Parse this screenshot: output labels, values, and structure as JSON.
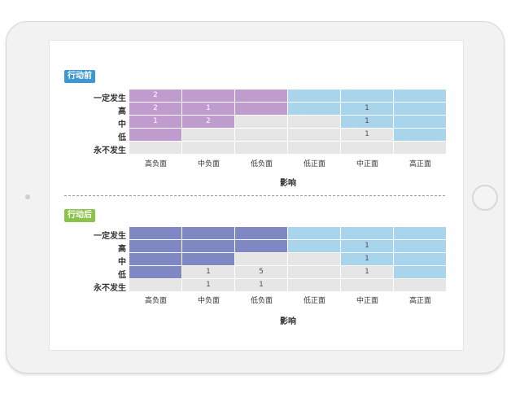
{
  "colors": {
    "purple_risk": "#bf9ccd",
    "indigo_risk": "#8088c4",
    "blue_opportunity": "#a8d4ec",
    "grey_empty": "#e6e6e6",
    "badge_before": "#3d98d0",
    "badge_after": "#8bc34a"
  },
  "chart_data": [
    {
      "type": "heatmap",
      "badge": "行动前",
      "rows": [
        "一定发生",
        "高",
        "中",
        "低",
        "永不发生"
      ],
      "columns": [
        "高负面",
        "中负面",
        "低负面",
        "低正面",
        "中正面",
        "高正面"
      ],
      "xlabel": "影响",
      "fills": [
        [
          "purple",
          "purple",
          "purple",
          "blue",
          "blue",
          "blue"
        ],
        [
          "purple",
          "purple",
          "purple",
          "blue",
          "blue",
          "blue"
        ],
        [
          "purple",
          "purple",
          "grey",
          "grey",
          "blue",
          "blue"
        ],
        [
          "purple",
          "grey",
          "grey",
          "grey",
          "grey",
          "blue"
        ],
        [
          "grey",
          "grey",
          "grey",
          "grey",
          "grey",
          "grey"
        ]
      ],
      "values": [
        [
          "2",
          "",
          "",
          "",
          "",
          ""
        ],
        [
          "2",
          "1",
          "",
          "",
          "1",
          ""
        ],
        [
          "1",
          "2",
          "",
          "",
          "1",
          ""
        ],
        [
          "",
          "",
          "",
          "",
          "1",
          ""
        ],
        [
          "",
          "",
          "",
          "",
          "",
          ""
        ]
      ]
    },
    {
      "type": "heatmap",
      "badge": "行动后",
      "rows": [
        "一定发生",
        "高",
        "中",
        "低",
        "永不发生"
      ],
      "columns": [
        "高负面",
        "中负面",
        "低负面",
        "低正面",
        "中正面",
        "高正面"
      ],
      "xlabel": "影响",
      "fills": [
        [
          "indigo",
          "indigo",
          "indigo",
          "blue",
          "blue",
          "blue"
        ],
        [
          "indigo",
          "indigo",
          "indigo",
          "blue",
          "blue",
          "blue"
        ],
        [
          "indigo",
          "indigo",
          "grey",
          "grey",
          "blue",
          "blue"
        ],
        [
          "indigo",
          "grey",
          "grey",
          "grey",
          "grey",
          "blue"
        ],
        [
          "grey",
          "grey",
          "grey",
          "grey",
          "grey",
          "grey"
        ]
      ],
      "values": [
        [
          "",
          "",
          "",
          "",
          "",
          ""
        ],
        [
          "",
          "",
          "",
          "",
          "1",
          ""
        ],
        [
          "",
          "",
          "",
          "",
          "1",
          ""
        ],
        [
          "",
          "1",
          "5",
          "",
          "1",
          ""
        ],
        [
          "",
          "1",
          "1",
          "",
          "",
          ""
        ]
      ]
    }
  ]
}
